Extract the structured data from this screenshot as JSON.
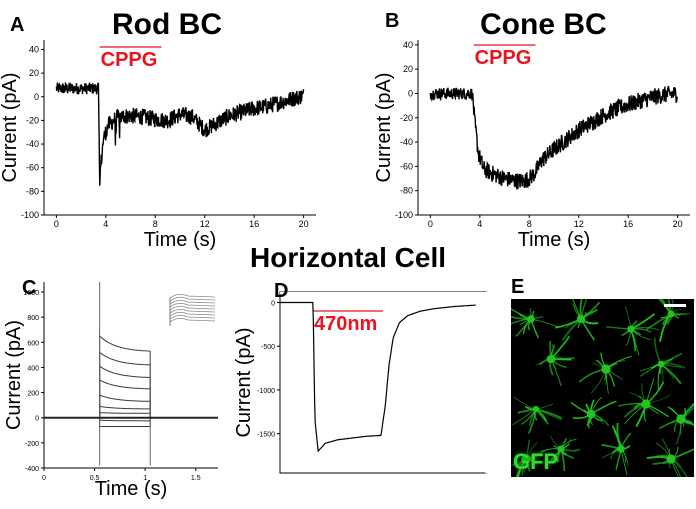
{
  "panel_labels": {
    "a": "A",
    "b": "B",
    "c": "C",
    "d": "D",
    "e": "E"
  },
  "section_title": "Horizontal Cell",
  "chart_data": [
    {
      "id": "A",
      "type": "line",
      "title": "Rod BC",
      "xlabel": "Time (s)",
      "ylabel": "Current (pA)",
      "xlim": [
        -1,
        21
      ],
      "ylim": [
        -100,
        48
      ],
      "xticks": [
        "0",
        "4",
        "8",
        "12",
        "16",
        "20"
      ],
      "yticks": [
        "40",
        "20",
        "0",
        "-20",
        "-40",
        "-60",
        "-80",
        "-100"
      ],
      "stimulus": {
        "label": "CPPG",
        "start": 3.5,
        "end": 8.5,
        "color": "#e8141e"
      },
      "trace_color": "#000000",
      "series": [
        {
          "x": [
            0,
            1,
            2,
            3,
            3.4,
            3.5,
            3.6,
            3.8,
            4.2,
            5,
            6,
            7,
            8,
            9,
            10,
            11,
            12,
            13,
            14,
            15,
            16,
            17,
            18,
            19,
            20
          ],
          "y": [
            7,
            7,
            7,
            7,
            7,
            -70,
            -58,
            -36,
            -24,
            -17,
            -16,
            -17,
            -19,
            -20,
            -15,
            -17,
            -28,
            -22,
            -16,
            -13,
            -10,
            -8,
            -5,
            -2,
            1
          ]
        }
      ]
    },
    {
      "id": "B",
      "type": "line",
      "title": "Cone BC",
      "xlabel": "Time (s)",
      "ylabel": "Current (pA)",
      "xlim": [
        -1,
        21
      ],
      "ylim": [
        -100,
        44
      ],
      "xticks": [
        "0",
        "4",
        "8",
        "12",
        "16",
        "20"
      ],
      "yticks": [
        "40",
        "20",
        "0",
        "-20",
        "-40",
        "-60",
        "-80",
        "-100"
      ],
      "stimulus": {
        "label": "CPPG",
        "start": 3.5,
        "end": 8.5,
        "color": "#e8141e"
      },
      "trace_color": "#000000",
      "series": [
        {
          "x": [
            0,
            1,
            2,
            3,
            3.4,
            3.6,
            3.9,
            4.3,
            5,
            6,
            7,
            7.5,
            8,
            8.5,
            9,
            10,
            11,
            12,
            13,
            14,
            15,
            16,
            17,
            18,
            19,
            20
          ],
          "y": [
            0,
            0,
            0,
            0,
            0,
            -25,
            -50,
            -62,
            -66,
            -70,
            -72,
            -72,
            -70,
            -65,
            -55,
            -46,
            -38,
            -30,
            -24,
            -18,
            -13,
            -9,
            -6,
            -3,
            -1,
            0
          ]
        }
      ]
    },
    {
      "id": "C",
      "type": "line",
      "xlabel": "Time (s)",
      "ylabel": "Current (pA)",
      "xlim": [
        0,
        1.72
      ],
      "ylim": [
        -400,
        1080
      ],
      "xticks": [
        "0",
        "0.5",
        "1",
        "1.5"
      ],
      "yticks": [
        "1000",
        "800",
        "600",
        "400",
        "200",
        "0",
        "-200",
        "-400"
      ],
      "step_on": 0.55,
      "step_off": 1.05,
      "trace_color": "#3a3a3a",
      "series": [
        {
          "start": 180,
          "end": 130
        },
        {
          "start": 300,
          "end": 230
        },
        {
          "start": 410,
          "end": 320
        },
        {
          "start": 520,
          "end": 420
        },
        {
          "start": 650,
          "end": 530
        },
        {
          "start": 90,
          "end": 70
        },
        {
          "start": 40,
          "end": 35
        },
        {
          "start": -20,
          "end": -25
        },
        {
          "start": -70,
          "end": -70
        }
      ]
    },
    {
      "id": "D",
      "type": "line",
      "xlabel": "",
      "ylabel": "Current (pA)",
      "xlim": [
        0,
        10
      ],
      "ylim": [
        -1950,
        120
      ],
      "yticks": [
        "0",
        "-500",
        "-1000",
        "-1500"
      ],
      "stimulus": {
        "label": "470nm",
        "start": 1.6,
        "end": 5.0,
        "color": "#e8141e"
      },
      "trace_color": "#000000",
      "series": [
        {
          "x": [
            0,
            1.6,
            1.7,
            1.85,
            2.2,
            2.8,
            3.5,
            4.2,
            4.9,
            5.1,
            5.3,
            5.5,
            5.8,
            6.2,
            6.8,
            7.5,
            8.5,
            9.5
          ],
          "y": [
            0,
            0,
            -1350,
            -1700,
            -1610,
            -1570,
            -1550,
            -1530,
            -1520,
            -1200,
            -700,
            -400,
            -230,
            -150,
            -100,
            -70,
            -45,
            -30
          ]
        }
      ]
    }
  ],
  "micrograph": {
    "label": "GFP",
    "fluorescence_color": "#22c322"
  }
}
